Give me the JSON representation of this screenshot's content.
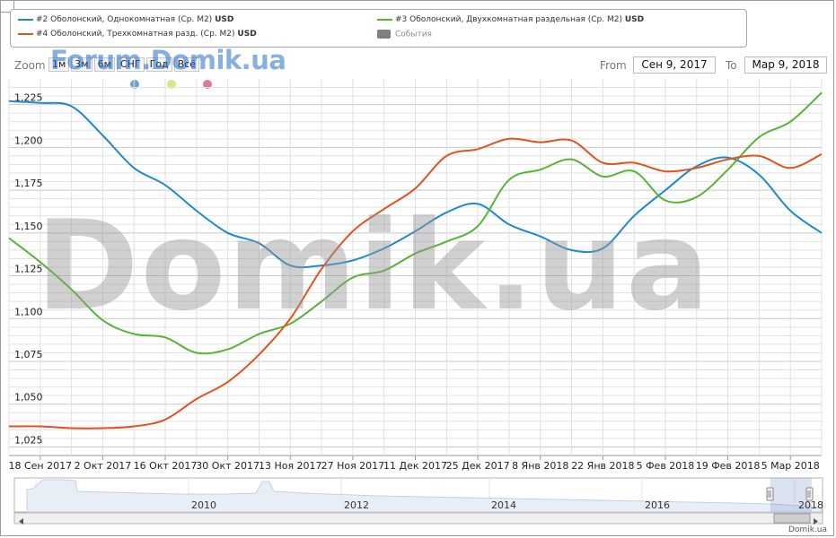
{
  "legend": [
    {
      "label": "#2 Оболонский, Однокомнатная (Ср. М2)",
      "unit": "USD",
      "color": "#1f8ac9"
    },
    {
      "label": "#3 Оболонский, Двухкомнатная раздельная (Ср. М2)",
      "unit": "USD",
      "color": "#58b336"
    },
    {
      "label": "#4 Оболонский, Трехкомнатная разд. (Ср. М2)",
      "unit": "USD",
      "color": "#e0531f"
    },
    {
      "label": "События",
      "unit": "",
      "color": "#7f7f7f"
    }
  ],
  "zoom": {
    "label": "Zoom",
    "buttons": [
      "1м",
      "3м",
      "6м",
      "СНГ",
      "Год",
      "Всё"
    ],
    "watermark": "Forum.Domik.ua"
  },
  "range": {
    "from_label": "From",
    "from_value": "Сен 9, 2017",
    "to_label": "To",
    "to_value": "Мар 9, 2018"
  },
  "event_dot_colors": [
    "#6fa1d1",
    "#dde387",
    "#e07a93"
  ],
  "watermark_text": "Domik.ua",
  "credit": "Domik.ua",
  "navigator": {
    "years": [
      "2010",
      "2012",
      "2014",
      "2016",
      "2018"
    ]
  },
  "chart_data": {
    "type": "line",
    "x": [
      "Сен 9",
      "Сен 18",
      "Сен 25",
      "Окт 2",
      "Окт 9",
      "Окт 16",
      "Окт 23",
      "Окт 30",
      "Ноя 6",
      "Ноя 13",
      "Ноя 20",
      "Ноя 27",
      "Дек 4",
      "Дек 11",
      "Дек 18",
      "Дек 25",
      "Янв 1",
      "Янв 8",
      "Янв 15",
      "Янв 22",
      "Янв 29",
      "Фев 5",
      "Фев 12",
      "Фев 19",
      "Фев 26",
      "Мар 5",
      "Мар 9"
    ],
    "xticks": [
      "18 Сен 2017",
      "2 Окт 2017",
      "16 Окт 2017",
      "30 Окт 2017",
      "13 Ноя 2017",
      "27 Ноя 2017",
      "11 Дек 2017",
      "25 Дек 2017",
      "8 Янв 2018",
      "22 Янв 2018",
      "5 Фев 2018",
      "19 Фев 2018",
      "5 Мар 2018"
    ],
    "yticks": [
      "1,025",
      "1,050",
      "1,075",
      "1,100",
      "1,125",
      "1,150",
      "1,175",
      "1,200",
      "1,225"
    ],
    "ylim": [
      1020,
      1240
    ],
    "series": [
      {
        "name": "#2 Оболонский, Однокомнатная (Ср. М2)",
        "color": "#1f8ac9",
        "values": [
          1227,
          1226,
          1224,
          1207,
          1188,
          1178,
          1163,
          1150,
          1144,
          1131,
          1131,
          1134,
          1141,
          1151,
          1162,
          1167,
          1155,
          1148,
          1140,
          1141,
          1160,
          1175,
          1189,
          1194,
          1184,
          1163,
          1150
        ]
      },
      {
        "name": "#3 Оболонский, Двухкомнатная раздельная (Ср. М2)",
        "color": "#58b336",
        "values": [
          1147,
          1133,
          1117,
          1099,
          1091,
          1089,
          1080,
          1082,
          1091,
          1097,
          1110,
          1124,
          1128,
          1138,
          1145,
          1154,
          1181,
          1187,
          1193,
          1183,
          1186,
          1169,
          1171,
          1187,
          1206,
          1215,
          1232
        ]
      },
      {
        "name": "#4 Оболонский, Трехкомнатная разд. (Ср. М2)",
        "color": "#e0531f",
        "values": [
          1037,
          1037,
          1036,
          1036,
          1037,
          1041,
          1053,
          1063,
          1079,
          1100,
          1129,
          1151,
          1164,
          1176,
          1195,
          1199,
          1205,
          1203,
          1204,
          1191,
          1191,
          1186,
          1188,
          1193,
          1195,
          1188,
          1196
        ]
      }
    ],
    "grid": true
  }
}
